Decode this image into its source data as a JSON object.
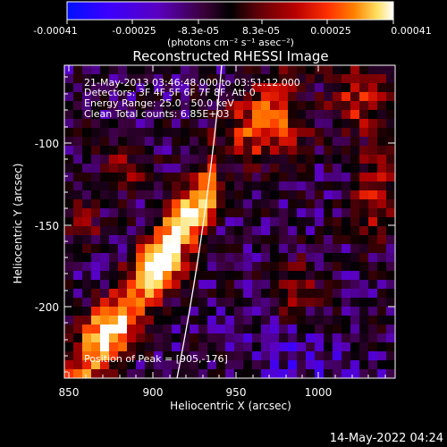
{
  "colorbar": {
    "ticks": [
      "-0.00041",
      "-0.00025",
      "-8.3e-05",
      "8.3e-05",
      "0.00025",
      "0.00041"
    ],
    "units": "(photons cm⁻² s⁻¹ asec⁻²)",
    "colors": [
      "#0010ff",
      "#3a00ff",
      "#5a00c0",
      "#3a0038",
      "#000000",
      "#5a0008",
      "#b80000",
      "#ff3000",
      "#ff8000",
      "#ffe060",
      "#ffffff"
    ]
  },
  "title": "Reconstructed RHESSI Image",
  "info": {
    "line1": "21-May-2013 03:46:48.000 to 03:51:12.000",
    "line2": "Detectors: 3F 4F 5F 6F 7F 8F, Att 0",
    "line3": "Energy Range: 25.0 - 50.0 keV",
    "line4": "Clean    Total counts: 6.85E+03"
  },
  "peak_label": "Position of Peak = [905,-176]",
  "x_axis": {
    "label": "Heliocentric X (arcsec)",
    "ticks": [
      "850",
      "900",
      "950",
      "1000"
    ]
  },
  "y_axis": {
    "label": "Heliocentric Y (arcsec)",
    "ticks": [
      "-100",
      "-150",
      "-200"
    ]
  },
  "footer": "14-May-2022 04:24"
}
